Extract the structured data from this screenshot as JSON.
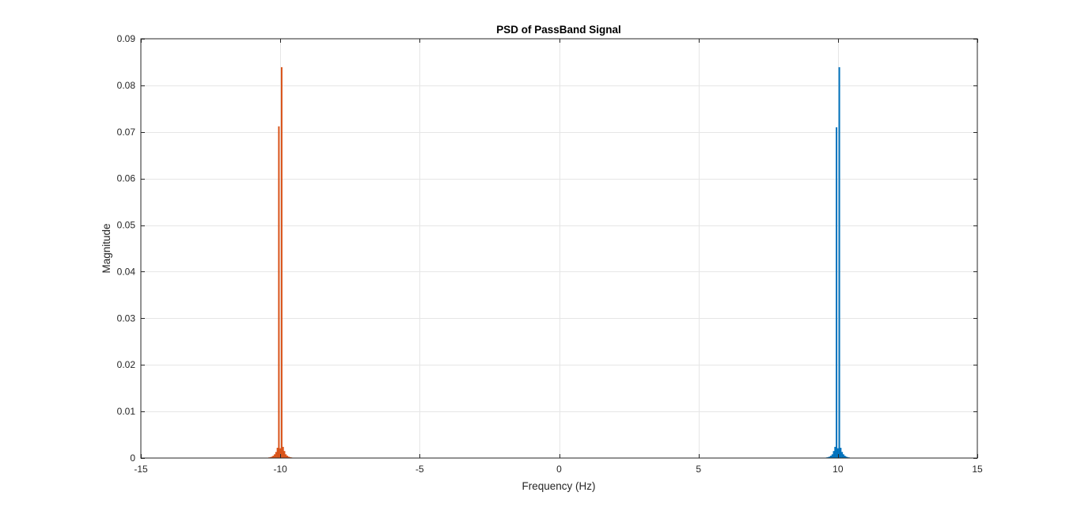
{
  "chart_data": {
    "type": "bar",
    "title": "PSD of PassBand Signal",
    "xlabel": "Frequency (Hz)",
    "ylabel": "Magnitude",
    "xlim": [
      -15,
      15
    ],
    "ylim": [
      0,
      0.09
    ],
    "xticks": [
      -15,
      -10,
      -5,
      0,
      5,
      10,
      15
    ],
    "xtick_labels": [
      "-15",
      "-10",
      "-5",
      "0",
      "5",
      "10",
      "15"
    ],
    "yticks": [
      0,
      0.01,
      0.02,
      0.03,
      0.04,
      0.05,
      0.06,
      0.07,
      0.08,
      0.09
    ],
    "ytick_labels": [
      "0",
      "0.01",
      "0.02",
      "0.03",
      "0.04",
      "0.05",
      "0.06",
      "0.07",
      "0.08",
      "0.09"
    ],
    "grid": true,
    "series": [
      {
        "color": "#0072bd",
        "x": [
          9.6,
          9.65,
          9.7,
          9.75,
          9.8,
          9.85,
          9.9,
          9.95,
          10.0,
          10.05,
          10.1,
          10.15,
          10.2,
          10.25,
          10.3,
          10.35,
          10.4
        ],
        "values": [
          0.0001,
          0.0002,
          0.0003,
          0.0005,
          0.0008,
          0.0015,
          0.0024,
          0.071,
          0.0021,
          0.0839,
          0.0022,
          0.0013,
          0.0008,
          0.0005,
          0.0003,
          0.0002,
          0.0001
        ]
      },
      {
        "color": "#d95319",
        "x": [
          -10.4,
          -10.35,
          -10.3,
          -10.25,
          -10.2,
          -10.15,
          -10.1,
          -10.05,
          -10.0,
          -9.95,
          -9.9,
          -9.85,
          -9.8,
          -9.75,
          -9.7,
          -9.65,
          -9.6
        ],
        "values": [
          0.0001,
          0.0002,
          0.0003,
          0.0005,
          0.0008,
          0.0013,
          0.0022,
          0.0712,
          0.0021,
          0.0839,
          0.0024,
          0.0015,
          0.0008,
          0.0005,
          0.0003,
          0.0002,
          0.0001
        ]
      }
    ]
  }
}
